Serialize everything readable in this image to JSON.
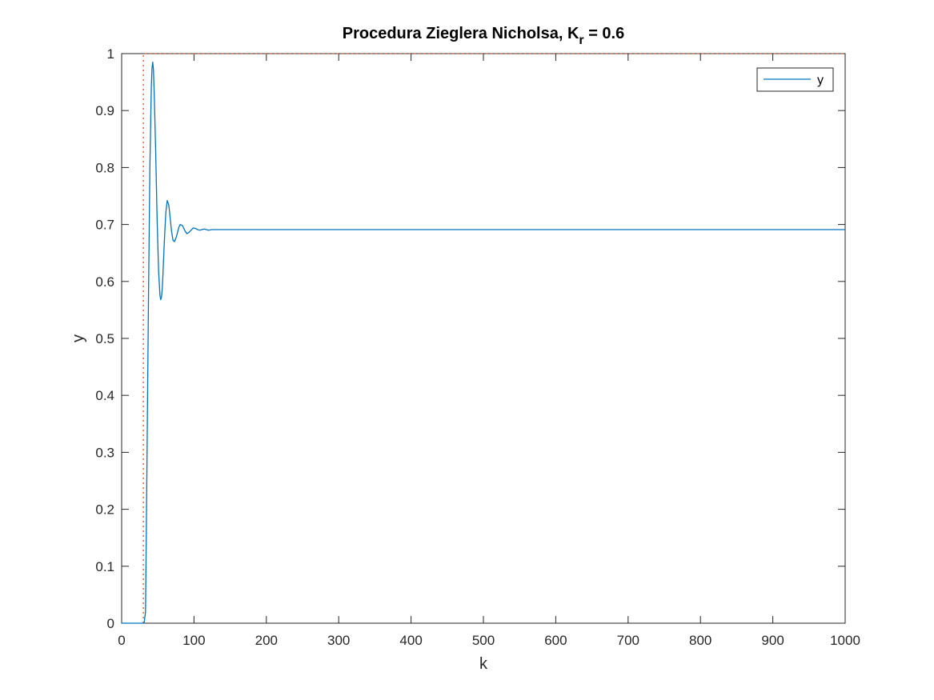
{
  "chart_data": {
    "type": "line",
    "title": {
      "main": "Procedura Zieglera Nicholsa, K",
      "subscript": "r",
      "suffix": " =  0.6"
    },
    "xlabel": "k",
    "ylabel": "y",
    "xlim": [
      0,
      1000
    ],
    "ylim": [
      0,
      1
    ],
    "xticks": [
      0,
      100,
      200,
      300,
      400,
      500,
      600,
      700,
      800,
      900,
      1000
    ],
    "yticks": [
      0,
      0.1,
      0.2,
      0.3,
      0.4,
      0.5,
      0.6,
      0.7,
      0.8,
      0.9,
      1
    ],
    "xtick_labels": [
      "0",
      "100",
      "200",
      "300",
      "400",
      "500",
      "600",
      "700",
      "800",
      "900",
      "1000"
    ],
    "ytick_labels": [
      "0",
      "0.1",
      "0.2",
      "0.3",
      "0.4",
      "0.5",
      "0.6",
      "0.7",
      "0.8",
      "0.9",
      "1"
    ],
    "grid": false,
    "legend": {
      "position": "top-right",
      "entries": [
        "y"
      ]
    },
    "series": [
      {
        "name": "y",
        "color": "#0072BD",
        "style": "solid",
        "x": [
          0,
          31,
          33,
          35,
          37,
          39,
          41,
          42,
          43,
          44,
          45,
          47,
          49,
          51,
          53,
          54,
          55,
          56,
          57,
          59,
          61,
          63,
          65,
          66,
          67,
          69,
          71,
          73,
          75,
          76,
          77,
          79,
          81,
          84,
          87,
          90,
          93,
          96,
          99,
          102,
          105,
          108,
          111,
          114,
          117,
          120,
          125,
          130,
          140,
          150,
          1000
        ],
        "y": [
          0,
          0,
          0.02,
          0.28,
          0.56,
          0.8,
          0.94,
          0.975,
          0.985,
          0.97,
          0.93,
          0.83,
          0.71,
          0.62,
          0.575,
          0.568,
          0.572,
          0.585,
          0.61,
          0.67,
          0.72,
          0.742,
          0.735,
          0.725,
          0.712,
          0.688,
          0.672,
          0.67,
          0.676,
          0.68,
          0.685,
          0.695,
          0.7,
          0.698,
          0.69,
          0.684,
          0.686,
          0.69,
          0.694,
          0.693,
          0.691,
          0.69,
          0.691,
          0.692,
          0.691,
          0.69,
          0.691,
          0.691,
          0.691,
          0.691,
          0.691
        ]
      },
      {
        "name": "",
        "color": "#D95319",
        "style": "dotted",
        "x": [
          30,
          30,
          30,
          1000
        ],
        "y": [
          0,
          1,
          1,
          1
        ]
      }
    ]
  }
}
